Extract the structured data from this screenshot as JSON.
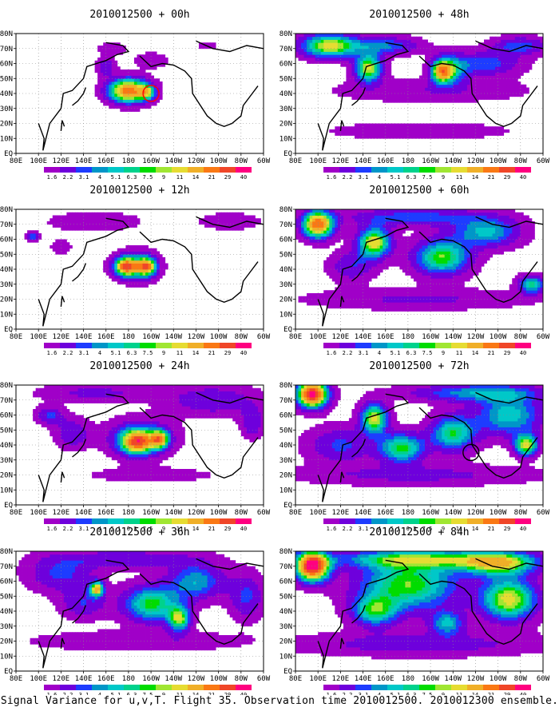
{
  "footer_caption": "Signal Variance for u,v,T. Flight 35. Observation time 2010012500. 2010012300 ensemble.",
  "chart_data": [
    {
      "type": "heatmap",
      "title": "2010012500 + 00h",
      "xlim": [
        80,
        300
      ],
      "ylim": [
        0,
        80
      ],
      "circle": [
        200,
        40,
        "#ff0000"
      ],
      "blobs": [
        [
          180,
          42,
          18,
          8,
          3.0
        ],
        [
          197,
          41,
          7,
          5,
          1.4
        ],
        [
          160,
          58,
          8,
          6,
          0.8
        ],
        [
          200,
          62,
          14,
          5,
          0.5
        ],
        [
          165,
          70,
          12,
          4,
          0.5
        ],
        [
          250,
          72,
          10,
          4,
          0.3
        ]
      ]
    },
    {
      "type": "heatmap",
      "title": "2010012500 + 48h",
      "xlim": [
        80,
        300
      ],
      "ylim": [
        0,
        80
      ],
      "blobs": [
        [
          110,
          72,
          25,
          8,
          2.2
        ],
        [
          145,
          57,
          12,
          9,
          2.2
        ],
        [
          210,
          55,
          10,
          8,
          2.3
        ],
        [
          220,
          56,
          14,
          10,
          1.0
        ],
        [
          160,
          72,
          30,
          6,
          1.1
        ],
        [
          250,
          60,
          30,
          8,
          1.0
        ],
        [
          190,
          15,
          80,
          6,
          0.45
        ],
        [
          200,
          42,
          90,
          8,
          0.45
        ],
        [
          280,
          72,
          25,
          6,
          1.0
        ]
      ]
    },
    {
      "type": "heatmap",
      "title": "2010012500 + 12h",
      "xlim": [
        80,
        300
      ],
      "ylim": [
        0,
        80
      ],
      "blobs": [
        [
          178,
          42,
          10,
          6,
          2.6
        ],
        [
          196,
          42,
          8,
          6,
          2.4
        ],
        [
          187,
          42,
          20,
          10,
          1.0
        ],
        [
          95,
          62,
          5,
          3,
          1.2
        ],
        [
          150,
          72,
          40,
          6,
          0.5
        ],
        [
          270,
          72,
          30,
          6,
          0.4
        ],
        [
          120,
          55,
          15,
          8,
          0.25
        ]
      ]
    },
    {
      "type": "heatmap",
      "title": "2010012500 + 60h",
      "xlim": [
        80,
        300
      ],
      "ylim": [
        0,
        80
      ],
      "blobs": [
        [
          100,
          70,
          14,
          9,
          3.0
        ],
        [
          150,
          58,
          15,
          10,
          2.3
        ],
        [
          210,
          48,
          25,
          12,
          1.9
        ],
        [
          250,
          65,
          30,
          10,
          1.4
        ],
        [
          290,
          30,
          12,
          6,
          1.6
        ],
        [
          190,
          20,
          100,
          7,
          0.55
        ],
        [
          130,
          42,
          20,
          10,
          0.8
        ],
        [
          185,
          75,
          60,
          6,
          1.0
        ]
      ]
    },
    {
      "type": "heatmap",
      "title": "2010012500 + 24h",
      "xlim": [
        80,
        300
      ],
      "ylim": [
        0,
        80
      ],
      "blobs": [
        [
          188,
          42,
          14,
          8,
          2.4
        ],
        [
          208,
          44,
          8,
          6,
          2.1
        ],
        [
          190,
          45,
          30,
          12,
          1.1
        ],
        [
          110,
          60,
          12,
          6,
          0.9
        ],
        [
          130,
          48,
          15,
          10,
          0.8
        ],
        [
          150,
          75,
          50,
          6,
          0.6
        ],
        [
          255,
          70,
          40,
          10,
          0.8
        ],
        [
          200,
          20,
          70,
          6,
          0.3
        ],
        [
          290,
          55,
          10,
          10,
          0.8
        ]
      ]
    },
    {
      "type": "heatmap",
      "title": "2010012500 + 72h",
      "xlim": [
        80,
        300
      ],
      "ylim": [
        0,
        80
      ],
      "circle": [
        236,
        35,
        "#000000"
      ],
      "blobs": [
        [
          95,
          74,
          14,
          9,
          3.5
        ],
        [
          150,
          58,
          12,
          10,
          2.2
        ],
        [
          175,
          38,
          20,
          10,
          1.8
        ],
        [
          220,
          48,
          20,
          12,
          1.7
        ],
        [
          270,
          60,
          30,
          14,
          1.5
        ],
        [
          285,
          40,
          10,
          7,
          2.2
        ],
        [
          190,
          20,
          110,
          7,
          0.6
        ],
        [
          240,
          75,
          60,
          6,
          1.2
        ],
        [
          120,
          40,
          30,
          12,
          0.9
        ]
      ]
    },
    {
      "type": "heatmap",
      "title": "2010012500 + 36h",
      "xlim": [
        80,
        300
      ],
      "ylim": [
        0,
        80
      ],
      "blobs": [
        [
          152,
          55,
          6,
          5,
          2.3
        ],
        [
          200,
          45,
          25,
          12,
          1.8
        ],
        [
          225,
          35,
          10,
          8,
          1.9
        ],
        [
          240,
          60,
          25,
          12,
          1.3
        ],
        [
          120,
          65,
          30,
          12,
          0.9
        ],
        [
          180,
          75,
          60,
          6,
          0.8
        ],
        [
          190,
          20,
          100,
          7,
          0.45
        ],
        [
          285,
          50,
          15,
          15,
          0.9
        ],
        [
          140,
          45,
          20,
          10,
          0.8
        ]
      ]
    },
    {
      "type": "heatmap",
      "title": "2010012500 + 84h",
      "xlim": [
        80,
        300
      ],
      "ylim": [
        0,
        80
      ],
      "blobs": [
        [
          95,
          70,
          15,
          10,
          3.6
        ],
        [
          180,
          58,
          45,
          18,
          1.9
        ],
        [
          270,
          48,
          25,
          14,
          2.2
        ],
        [
          260,
          72,
          35,
          8,
          2.0
        ],
        [
          150,
          40,
          20,
          10,
          1.5
        ],
        [
          190,
          75,
          80,
          6,
          1.5
        ],
        [
          190,
          18,
          110,
          8,
          0.7
        ],
        [
          215,
          32,
          15,
          8,
          1.3
        ]
      ]
    }
  ],
  "colorbar": {
    "labels": [
      "1.6",
      "2.2",
      "3.1",
      "4",
      "5.1",
      "6.3",
      "7.5",
      "9",
      "11",
      "14",
      "21",
      "29",
      "40"
    ],
    "colors": [
      "#a000c8",
      "#6e00dc",
      "#1e3cff",
      "#0096c8",
      "#00c8c8",
      "#00d28c",
      "#00dc00",
      "#a0e632",
      "#e6dc32",
      "#f0af28",
      "#fa7814",
      "#f04628",
      "#ff0080"
    ]
  },
  "lat_ticks": [
    "EQ",
    "10N",
    "20N",
    "30N",
    "40N",
    "50N",
    "60N",
    "70N",
    "80N"
  ],
  "lon_ticks": [
    "80E",
    "100E",
    "120E",
    "140E",
    "160E",
    "180",
    "160W",
    "140W",
    "120W",
    "100W",
    "80W",
    "60W"
  ]
}
